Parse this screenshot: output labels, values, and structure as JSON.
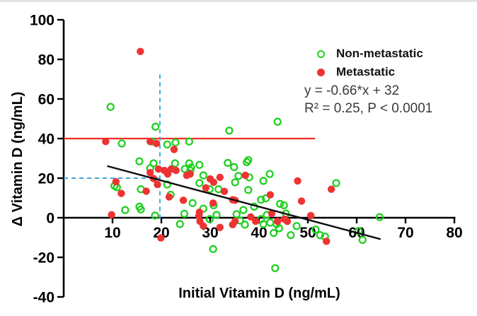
{
  "chart_data": {
    "type": "scatter",
    "title": "",
    "xlabel": "Initial Vitamin D (ng/mL)",
    "ylabel": "Δ Vitamin D (ng/mL)",
    "xlim": [
      0,
      80
    ],
    "ylim": [
      -40,
      100
    ],
    "x_ticks": [
      10,
      20,
      30,
      40,
      50,
      60,
      70,
      80
    ],
    "y_ticks": [
      -40,
      -20,
      0,
      20,
      40,
      60,
      80,
      100
    ],
    "grid": false,
    "axis_color": "#000000",
    "legend": {
      "position": "top-right",
      "entries": [
        {
          "label": "Non-metastatic",
          "marker": "open-circle",
          "color": "#21d021"
        },
        {
          "label": "Metastatic",
          "marker": "filled-circle",
          "color": "#ed3333"
        }
      ]
    },
    "annotations": {
      "equation": "y = -0.66*x + 32",
      "stats": "R² = 0.25, P < 0.0001"
    },
    "reference_lines": [
      {
        "name": "red-threshold-line",
        "kind": "h",
        "y": 40,
        "x1": 0,
        "x2": 51.5,
        "color": "#f22d1f",
        "width": 2.2,
        "dash": null,
        "layer": "under"
      },
      {
        "name": "dashed-vertical-x20",
        "kind": "v",
        "x": 19.7,
        "y1": -0.5,
        "y2": 73,
        "color": "#41a8dd",
        "width": 2,
        "dash": "6 5",
        "layer": "under"
      },
      {
        "name": "dashed-horizontal-y20",
        "kind": "h",
        "y": 20,
        "x1": 0,
        "x2": 19.7,
        "color": "#41a8dd",
        "width": 2,
        "dash": "6 5",
        "layer": "under"
      },
      {
        "name": "regression-line",
        "kind": "fn",
        "slope": -0.66,
        "intercept": 32,
        "x1": 8.9,
        "x2": 64.9,
        "color": "#0d0d0d",
        "width": 2.4,
        "dash": null,
        "layer": "over"
      }
    ],
    "series": [
      {
        "name": "Non-metastatic",
        "marker": "open-circle",
        "color": "#21d021",
        "points": [
          [
            9.6,
            56
          ],
          [
            18.8,
            46
          ],
          [
            33.9,
            44
          ],
          [
            43.8,
            48.5
          ],
          [
            11.9,
            37.5
          ],
          [
            18.1,
            38.5
          ],
          [
            22.9,
            38
          ],
          [
            25.7,
            38.5
          ],
          [
            21.2,
            37
          ],
          [
            15.5,
            28.5
          ],
          [
            18.4,
            27.5
          ],
          [
            17.7,
            25
          ],
          [
            22.8,
            27.5
          ],
          [
            25.7,
            27.5
          ],
          [
            26.1,
            25.4
          ],
          [
            27.8,
            26.7
          ],
          [
            33.6,
            27.7
          ],
          [
            34.9,
            25.6
          ],
          [
            37.5,
            28.1
          ],
          [
            37.8,
            29.1
          ],
          [
            24.8,
            24.6
          ],
          [
            25.9,
            23.9
          ],
          [
            28.6,
            21.4
          ],
          [
            35.8,
            21.1
          ],
          [
            38,
            20.4
          ],
          [
            42.2,
            22.1
          ],
          [
            10.4,
            16.1
          ],
          [
            10.9,
            15.4
          ],
          [
            15.8,
            14.4
          ],
          [
            21.2,
            16.8
          ],
          [
            27.8,
            17.5
          ],
          [
            35.1,
            17.9
          ],
          [
            40.9,
            18.6
          ],
          [
            55.8,
            17.5
          ],
          [
            29.9,
            14.4
          ],
          [
            31.7,
            14.4
          ],
          [
            37.8,
            14
          ],
          [
            21.9,
            11.6
          ],
          [
            40.4,
            9.1
          ],
          [
            41.4,
            9.8
          ],
          [
            12.6,
            3.9
          ],
          [
            15.5,
            5.6
          ],
          [
            15.8,
            4.2
          ],
          [
            26.4,
            7.4
          ],
          [
            28.6,
            4.6
          ],
          [
            30.7,
            6.3
          ],
          [
            36.8,
            3.9
          ],
          [
            39,
            5.6
          ],
          [
            44.3,
            7
          ],
          [
            45.1,
            6.3
          ],
          [
            18.7,
            1.1
          ],
          [
            24.7,
            2
          ],
          [
            29.9,
            -0.7
          ],
          [
            31.3,
            1.4
          ],
          [
            35.4,
            1.8
          ],
          [
            41.6,
            1.4
          ],
          [
            45.5,
            2.1
          ],
          [
            64.7,
            0.3
          ],
          [
            23.8,
            -3.2
          ],
          [
            36.1,
            -1.4
          ],
          [
            37.1,
            -3.5
          ],
          [
            40.4,
            -0.7
          ],
          [
            40.9,
            -3.2
          ],
          [
            42.3,
            -2.5
          ],
          [
            43.6,
            -3.2
          ],
          [
            44.1,
            -5.3
          ],
          [
            47.7,
            -4.2
          ],
          [
            43,
            -7.7
          ],
          [
            46.5,
            -8.8
          ],
          [
            51.6,
            -6
          ],
          [
            52.5,
            -8.8
          ],
          [
            53.5,
            -9.5
          ],
          [
            60.4,
            -6.7
          ],
          [
            61.2,
            -11.2
          ],
          [
            30.6,
            -15.8
          ],
          [
            43.3,
            -25.5
          ]
        ]
      },
      {
        "name": "Metastatic",
        "marker": "filled-circle",
        "color": "#ed3333",
        "points": [
          [
            15.7,
            84
          ],
          [
            8.6,
            38.5
          ],
          [
            17.7,
            38.5
          ],
          [
            19,
            37.5
          ],
          [
            22.6,
            34.5
          ],
          [
            17.7,
            22.8
          ],
          [
            18.4,
            19.8
          ],
          [
            19.4,
            24.6
          ],
          [
            21.2,
            23.2
          ],
          [
            20.6,
            23.9
          ],
          [
            22,
            24.6
          ],
          [
            23,
            23.9
          ],
          [
            21.3,
            22.1
          ],
          [
            25.2,
            21.4
          ],
          [
            25.9,
            22.1
          ],
          [
            30,
            19.6
          ],
          [
            30.7,
            17.9
          ],
          [
            32,
            20.4
          ],
          [
            37.2,
            21.4
          ],
          [
            47.9,
            18.6
          ],
          [
            10.7,
            18.2
          ],
          [
            19.2,
            16.8
          ],
          [
            16.9,
            13.4
          ],
          [
            29.1,
            15.1
          ],
          [
            32.9,
            13.3
          ],
          [
            54.8,
            14.4
          ],
          [
            11.8,
            12.3
          ],
          [
            21.6,
            10.5
          ],
          [
            24.5,
            8.8
          ],
          [
            30.6,
            7.4
          ],
          [
            34.6,
            9.1
          ],
          [
            35.1,
            8.8
          ],
          [
            42.3,
            11.6
          ],
          [
            48.7,
            8.4
          ],
          [
            9.8,
            1.5
          ],
          [
            27.8,
            2.8
          ],
          [
            27.7,
            1.1
          ],
          [
            38.3,
            0.4
          ],
          [
            42.6,
            2.1
          ],
          [
            50.6,
            1.1
          ],
          [
            27.9,
            -1.8
          ],
          [
            28.6,
            -4.2
          ],
          [
            32,
            -4.9
          ],
          [
            34.6,
            -3.5
          ],
          [
            35.1,
            -1.8
          ],
          [
            39.3,
            -1.8
          ],
          [
            43.8,
            -1.8
          ],
          [
            45.8,
            -1.8
          ],
          [
            45.2,
            -0.7
          ],
          [
            19.9,
            -10.2
          ],
          [
            53.8,
            -11.9
          ]
        ]
      }
    ]
  }
}
